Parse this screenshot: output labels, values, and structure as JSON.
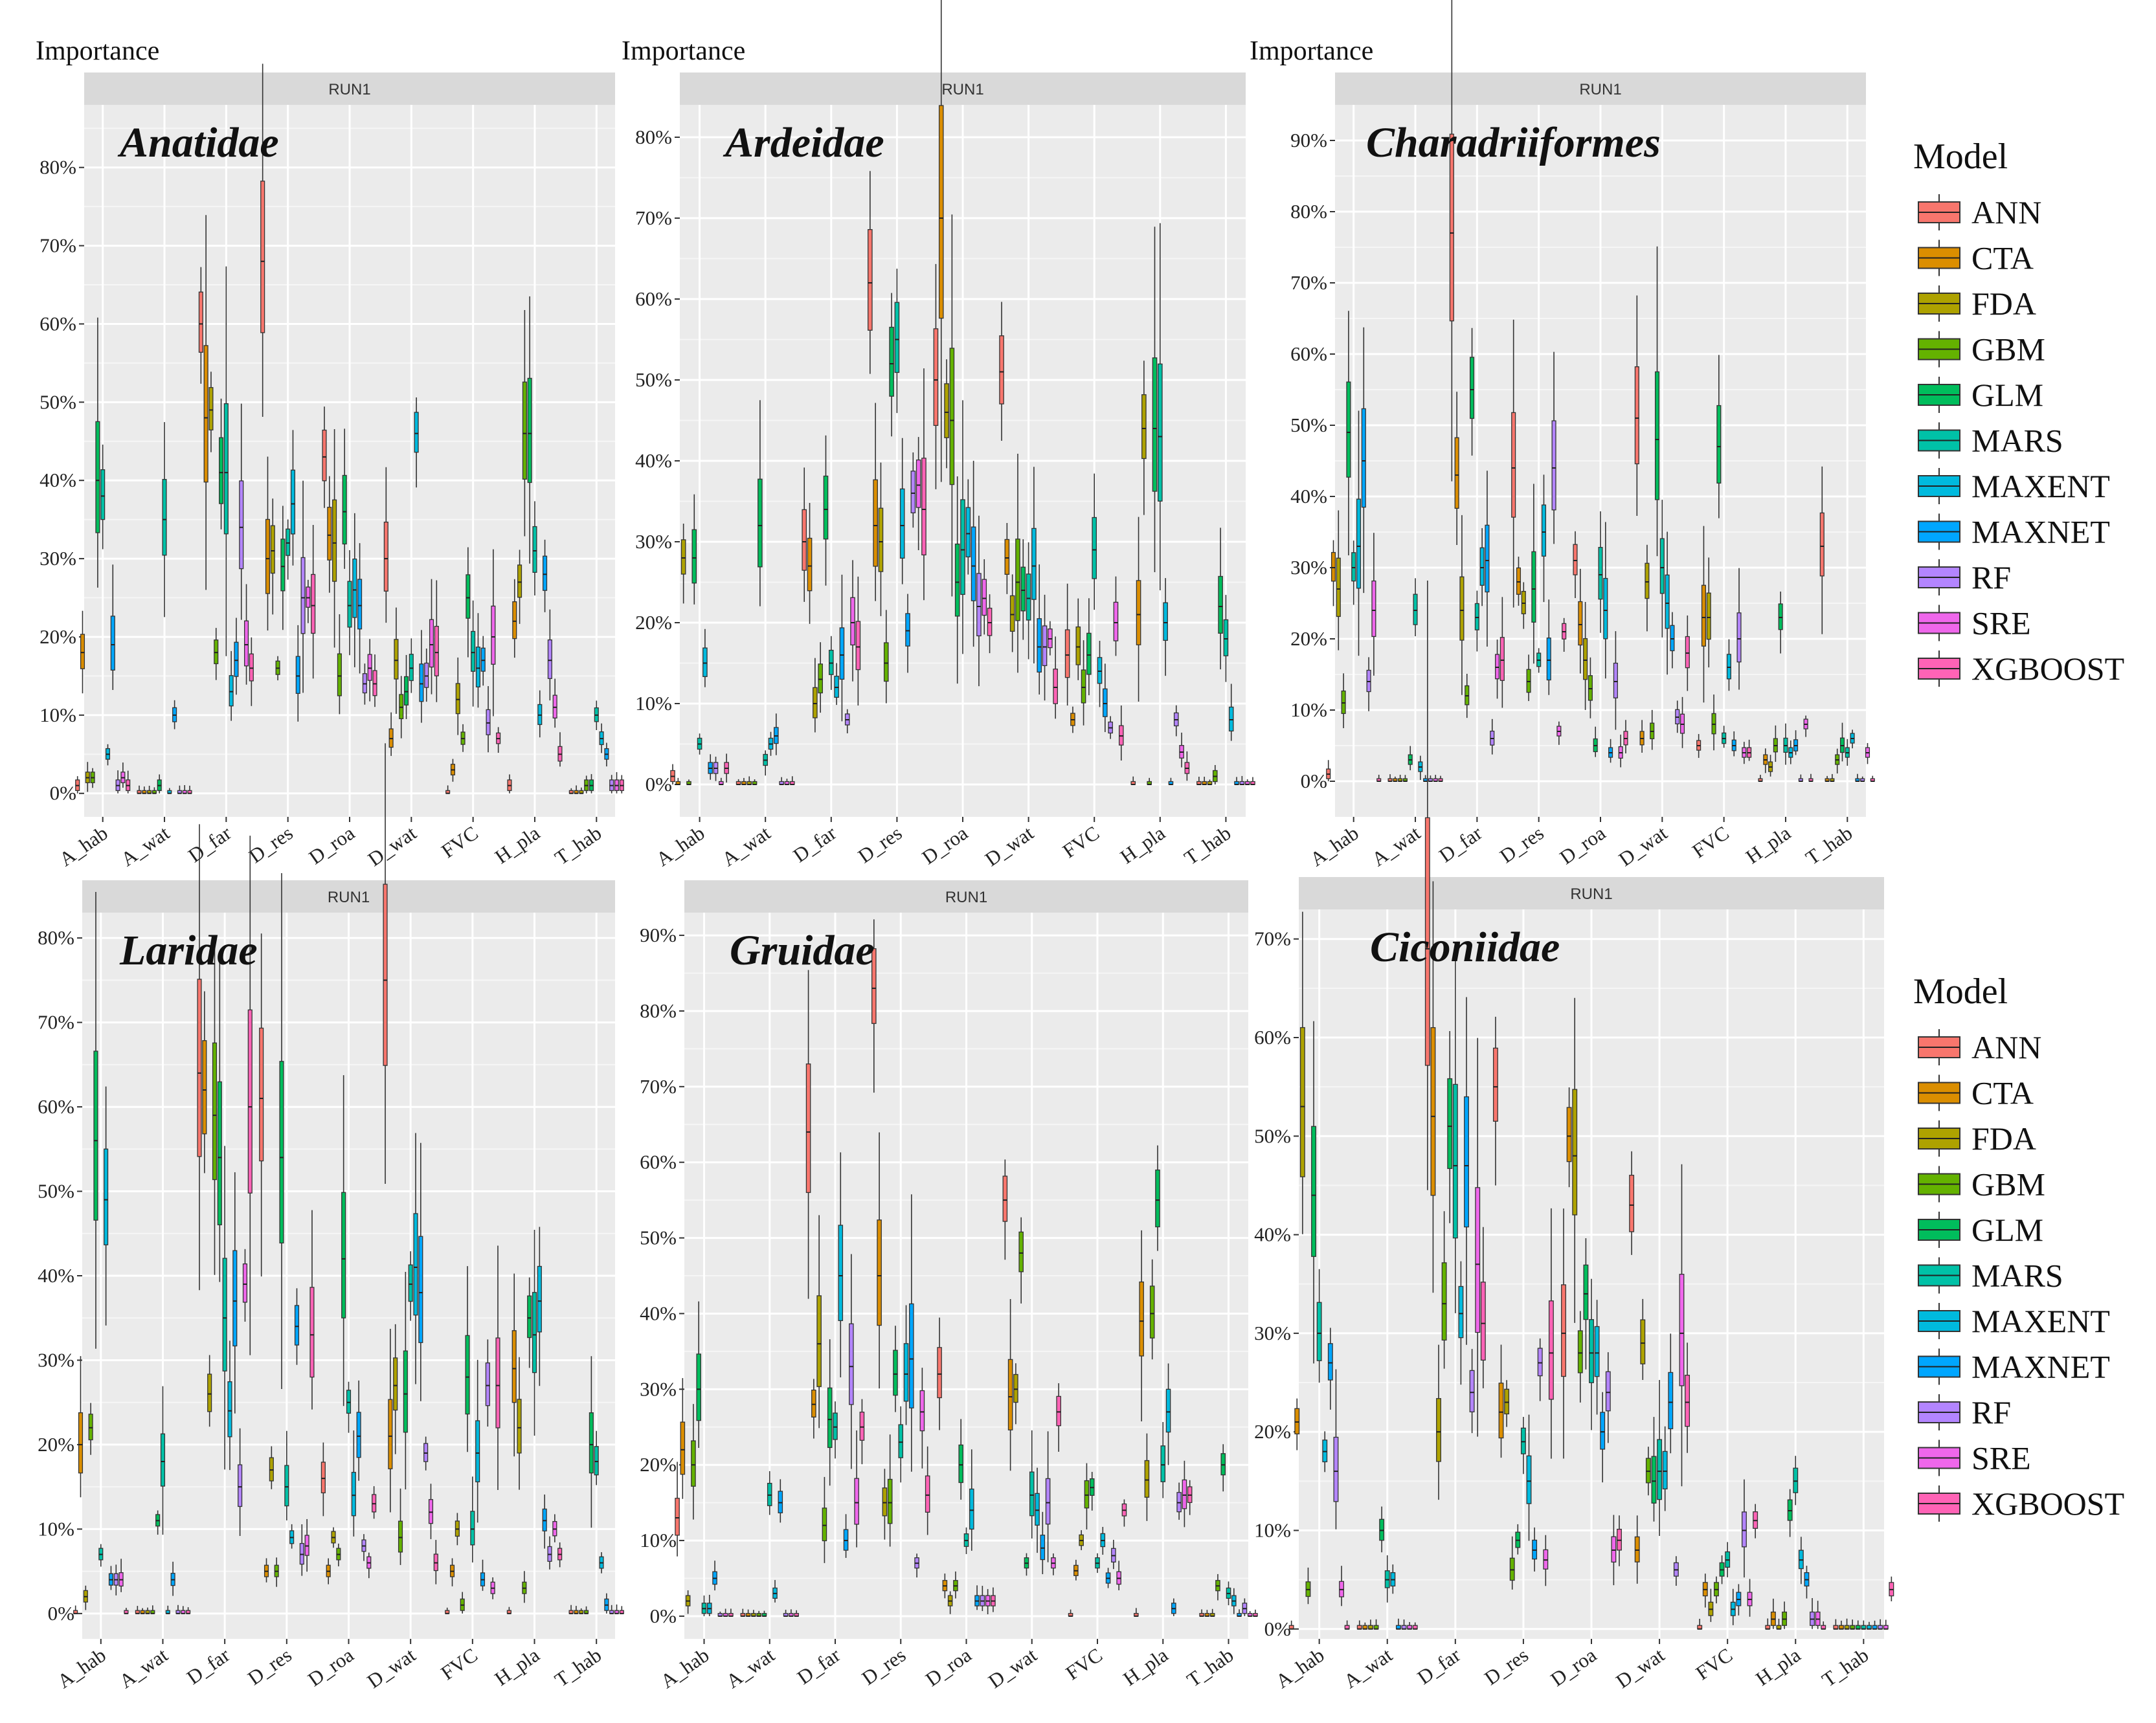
{
  "chart_data": {
    "type": "box",
    "y_label": "Importance",
    "strip_label": "RUN1",
    "categories": [
      "A_hab",
      "A_wat",
      "D_far",
      "D_res",
      "D_roa",
      "D_wat",
      "FVC",
      "H_pla",
      "T_hab"
    ],
    "models": [
      "ANN",
      "CTA",
      "FDA",
      "GBM",
      "GLM",
      "MARS",
      "MAXENT",
      "MAXNET",
      "RF",
      "SRE",
      "XGBOOST"
    ],
    "colors": [
      "#F8766D",
      "#DB8E00",
      "#AEA200",
      "#64B200",
      "#00BD5C",
      "#00C1A7",
      "#00BADE",
      "#00A6FF",
      "#B385FF",
      "#EF67EB",
      "#FF63B6"
    ],
    "legend": {
      "title": "Model"
    },
    "panels": [
      {
        "title": "Anatidae",
        "ylim": [
          -3,
          88
        ],
        "yticks": [
          0,
          10,
          20,
          30,
          40,
          50,
          60,
          70,
          80
        ],
        "medians": [
          [
            1,
            18,
            2,
            2,
            40,
            38,
            5,
            19,
            1,
            2,
            1
          ],
          [
            0,
            0,
            0,
            0,
            1,
            35,
            0,
            10,
            0,
            0,
            0
          ],
          [
            60,
            48,
            49,
            18,
            41,
            41,
            13,
            17,
            34,
            19,
            16
          ],
          [
            68,
            30,
            31,
            16,
            29,
            32,
            37,
            15,
            25,
            25,
            24
          ],
          [
            43,
            33,
            32,
            15,
            36,
            24,
            26,
            24,
            14,
            16,
            14
          ],
          [
            30,
            7,
            17,
            11,
            13,
            16,
            46,
            14,
            15,
            19,
            18
          ],
          [
            0,
            3,
            12,
            7,
            25,
            18,
            16,
            17,
            9,
            20,
            7
          ],
          [
            1,
            22,
            27,
            46,
            46,
            31,
            10,
            28,
            17,
            11,
            5
          ],
          [
            0,
            0,
            0,
            1,
            1,
            10,
            7,
            5,
            1,
            1,
            1
          ]
        ]
      },
      {
        "title": "Ardeidae",
        "ylim": [
          -4,
          84
        ],
        "yticks": [
          0,
          10,
          20,
          30,
          40,
          50,
          60,
          70,
          80
        ],
        "medians": [
          [
            1,
            0,
            28,
            0,
            28,
            5,
            15,
            2,
            2,
            0,
            2
          ],
          [
            0,
            0,
            0,
            0,
            32,
            3,
            5,
            6,
            0,
            0,
            0
          ],
          [
            30,
            27,
            10,
            13,
            34,
            15,
            12,
            16,
            8,
            20,
            17
          ],
          [
            62,
            32,
            30,
            15,
            52,
            55,
            32,
            19,
            36,
            37,
            34
          ],
          [
            50,
            70,
            46,
            45,
            25,
            29,
            31,
            27,
            22,
            23,
            20
          ],
          [
            51,
            28,
            21,
            25,
            24,
            23,
            27,
            17,
            17,
            18,
            12
          ],
          [
            16,
            8,
            17,
            12,
            16,
            29,
            14,
            10,
            7,
            20,
            6
          ],
          [
            0,
            21,
            44,
            0,
            44,
            43,
            20,
            0,
            8,
            4,
            2
          ],
          [
            0,
            0,
            0,
            1,
            22,
            18,
            8,
            0,
            0,
            0,
            0
          ]
        ]
      },
      {
        "title": "Charadriiformes",
        "ylim": [
          -5,
          95
        ],
        "yticks": [
          0,
          10,
          20,
          30,
          40,
          50,
          60,
          70,
          80,
          90
        ],
        "medians": [
          [
            1,
            30,
            27,
            11,
            49,
            30,
            33,
            45,
            14,
            24,
            0
          ],
          [
            0,
            0,
            0,
            0,
            3,
            24,
            2,
            0,
            0,
            0,
            0
          ],
          [
            77,
            43,
            24,
            12,
            55,
            23,
            30,
            31,
            6,
            16,
            17
          ],
          [
            44,
            28,
            25,
            14,
            27,
            17,
            35,
            17,
            44,
            7,
            21
          ],
          [
            31,
            22,
            17,
            13,
            5,
            29,
            24,
            4,
            14,
            4,
            6
          ],
          [
            51,
            6,
            28,
            7,
            48,
            30,
            25,
            20,
            9,
            8,
            18
          ],
          [
            5,
            23,
            23,
            8,
            47,
            6,
            16,
            5,
            20,
            4,
            4
          ],
          [
            0,
            3,
            2,
            5,
            23,
            5,
            4,
            5,
            0,
            8,
            0
          ],
          [
            33,
            0,
            0,
            3,
            5,
            4,
            6,
            0,
            0,
            4,
            0
          ]
        ]
      },
      {
        "title": "Laridae",
        "ylim": [
          -3,
          83
        ],
        "yticks": [
          0,
          10,
          20,
          30,
          40,
          50,
          60,
          70,
          80
        ],
        "medians": [
          [
            0,
            20,
            2,
            22,
            56,
            7,
            49,
            4,
            4,
            4,
            0
          ],
          [
            0,
            0,
            0,
            0,
            11,
            18,
            0,
            4,
            0,
            0,
            0
          ],
          [
            64,
            62,
            26,
            59,
            54,
            35,
            24,
            37,
            15,
            39,
            60
          ],
          [
            61,
            5,
            17,
            5,
            54,
            15,
            9,
            34,
            7,
            8,
            33
          ],
          [
            16,
            5,
            9,
            7,
            42,
            25,
            14,
            21,
            8,
            6,
            13
          ],
          [
            75,
            21,
            27,
            9,
            26,
            39,
            41,
            38,
            19,
            12,
            6
          ],
          [
            0,
            5,
            10,
            1,
            28,
            10,
            19,
            4,
            27,
            3,
            27
          ],
          [
            0,
            29,
            22,
            3,
            35,
            33,
            37,
            11,
            7,
            10,
            7
          ],
          [
            0,
            0,
            0,
            0,
            20,
            18,
            6,
            1,
            0,
            0,
            0
          ]
        ]
      },
      {
        "title": "Gruidae",
        "ylim": [
          -3,
          93
        ],
        "yticks": [
          0,
          10,
          20,
          30,
          40,
          50,
          60,
          70,
          80,
          90
        ],
        "medians": [
          [
            13,
            22,
            2,
            20,
            30,
            1,
            1,
            5,
            0,
            0,
            0
          ],
          [
            0,
            0,
            0,
            0,
            0,
            16,
            3,
            15,
            0,
            0,
            0
          ],
          [
            64,
            28,
            36,
            12,
            26,
            25,
            45,
            10,
            33,
            15,
            25
          ],
          [
            83,
            45,
            15,
            15,
            32,
            23,
            32,
            34,
            7,
            27,
            16
          ],
          [
            32,
            4,
            2,
            4,
            20,
            10,
            14,
            2,
            2,
            2,
            2
          ],
          [
            55,
            29,
            30,
            48,
            7,
            16,
            14,
            9,
            15,
            7,
            27
          ],
          [
            0,
            6,
            10,
            16,
            17,
            7,
            10,
            5,
            8,
            5,
            14
          ],
          [
            0,
            39,
            18,
            40,
            55,
            20,
            27,
            1,
            15,
            16,
            16
          ],
          [
            0,
            0,
            0,
            4,
            20,
            3,
            2,
            0,
            1,
            0,
            0
          ]
        ]
      },
      {
        "title": "Ciconiidae",
        "ylim": [
          -1,
          73
        ],
        "yticks": [
          0,
          10,
          20,
          30,
          40,
          50,
          60,
          70
        ],
        "medians": [
          [
            0,
            21,
            53,
            4,
            44,
            30,
            18,
            27,
            16,
            4,
            0
          ],
          [
            0,
            0,
            0,
            0,
            10,
            5,
            5,
            0,
            0,
            0,
            0
          ],
          [
            69,
            52,
            20,
            33,
            51,
            47,
            32,
            47,
            24,
            37,
            31
          ],
          [
            55,
            22,
            23,
            6,
            9,
            19,
            15,
            8,
            27,
            7,
            28
          ],
          [
            30,
            50,
            48,
            28,
            34,
            28,
            28,
            20,
            24,
            8,
            9
          ],
          [
            43,
            8,
            29,
            16,
            15,
            16,
            16,
            23,
            6,
            30,
            23
          ],
          [
            0,
            4,
            2,
            4,
            6,
            7,
            2,
            3,
            10,
            3,
            11
          ],
          [
            0,
            1,
            0,
            1,
            12,
            15,
            7,
            5,
            1,
            1,
            0
          ],
          [
            0,
            0,
            0,
            0,
            0,
            0,
            0,
            0,
            0,
            0,
            4
          ]
        ]
      }
    ]
  }
}
